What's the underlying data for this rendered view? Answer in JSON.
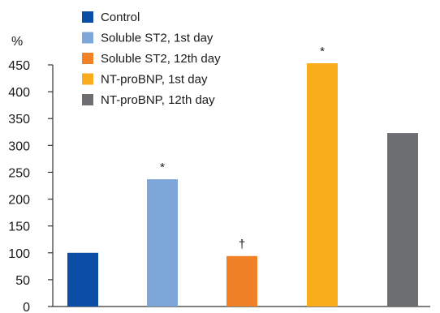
{
  "chart_data": {
    "type": "bar",
    "ylabel": "%",
    "ylim": [
      0,
      450
    ],
    "yticks": [
      0,
      50,
      100,
      150,
      200,
      250,
      300,
      350,
      400,
      450
    ],
    "grid": false,
    "legend_position": "top-left",
    "bars": [
      {
        "name": "Control",
        "value": 100,
        "color": "#0a4ea5",
        "label": ""
      },
      {
        "name": "Soluble ST2, 1st day",
        "value": 237,
        "color": "#7ea7d9",
        "label": "*"
      },
      {
        "name": "Soluble ST2, 12th day",
        "value": 94,
        "color": "#f08127",
        "label": "†"
      },
      {
        "name": "NT-proBNP, 1st day",
        "value": 453,
        "color": "#f9ad1c",
        "label": "*"
      },
      {
        "name": "NT-proBNP, 12th day",
        "value": 323,
        "color": "#6d6e71",
        "label": ""
      }
    ]
  }
}
